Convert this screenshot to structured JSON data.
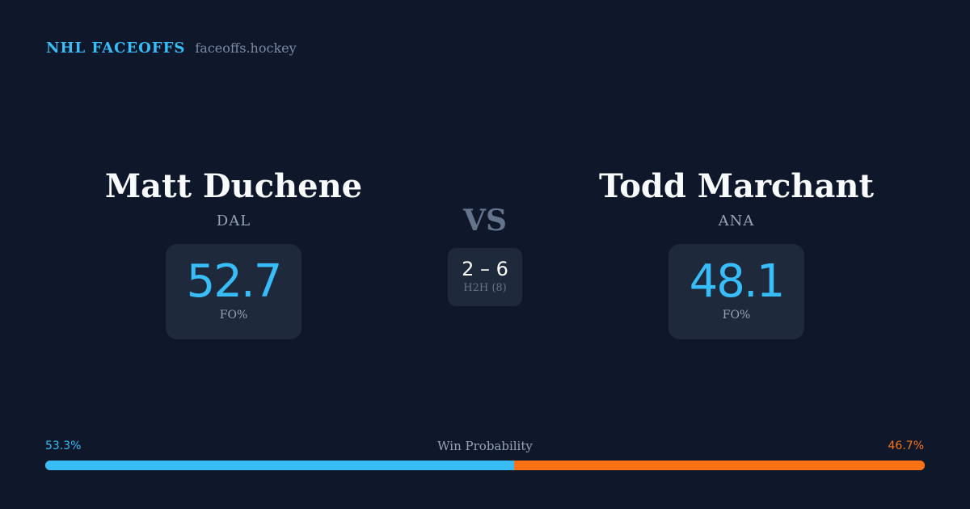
{
  "brand": {
    "title": "NHL FACEOFFS",
    "domain": "faceoffs.hockey"
  },
  "player1": {
    "name": "Matt Duchene",
    "team": "DAL",
    "fo_pct": "52.7",
    "fo_label": "FO%"
  },
  "player2": {
    "name": "Todd Marchant",
    "team": "ANA",
    "fo_pct": "48.1",
    "fo_label": "FO%"
  },
  "vs": "VS",
  "h2h": {
    "score": "2 – 6",
    "label": "H2H (8)"
  },
  "win_probability": {
    "title": "Win Probability",
    "left_label": "53.3%",
    "right_label": "46.7%",
    "left_value": 53.3,
    "right_value": 46.7
  },
  "colors": {
    "background": "#0f172a",
    "accent": "#38bdf8",
    "opponent": "#f97316",
    "card": "#1e293b"
  }
}
